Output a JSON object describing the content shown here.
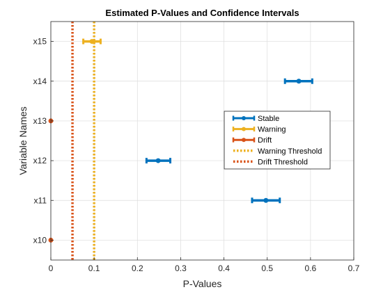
{
  "chart_data": {
    "type": "errorbar",
    "title": "Estimated P-Values and Confidence Intervals",
    "xlabel": "P-Values",
    "ylabel": "Variable Names",
    "xlim": [
      0,
      0.7
    ],
    "ylim": [
      9.5,
      15.5
    ],
    "xticks": [
      0,
      0.1,
      0.2,
      0.3,
      0.4,
      0.5,
      0.6,
      0.7
    ],
    "xtick_labels": [
      "0",
      "0.1",
      "0.2",
      "0.3",
      "0.4",
      "0.5",
      "0.6",
      "0.7"
    ],
    "yticks": [
      10,
      11,
      12,
      13,
      14,
      15
    ],
    "ytick_labels": [
      "x10",
      "x11",
      "x12",
      "x13",
      "x14",
      "x15"
    ],
    "grid": true,
    "legend_position": "right",
    "series": [
      {
        "name": "Stable",
        "color": "#0072BD",
        "points": [
          {
            "y": 14,
            "x": 0.573,
            "low": 0.541,
            "high": 0.604
          },
          {
            "y": 12,
            "x": 0.248,
            "low": 0.221,
            "high": 0.276
          },
          {
            "y": 11,
            "x": 0.497,
            "low": 0.465,
            "high": 0.529
          }
        ]
      },
      {
        "name": "Warning",
        "color": "#EDB120",
        "points": [
          {
            "y": 15,
            "x": 0.095,
            "low": 0.075,
            "high": 0.115
          }
        ]
      },
      {
        "name": "Drift",
        "color": "#D95319",
        "points": [
          {
            "y": 13,
            "x": 0.0,
            "low": 0.0,
            "high": 0.0
          },
          {
            "y": 10,
            "x": 0.0,
            "low": 0.0,
            "high": 0.0
          }
        ]
      }
    ],
    "thresholds": [
      {
        "name": "Warning Threshold",
        "x": 0.1,
        "color": "#EDB120"
      },
      {
        "name": "Drift Threshold",
        "x": 0.05,
        "color": "#D95319"
      }
    ]
  }
}
